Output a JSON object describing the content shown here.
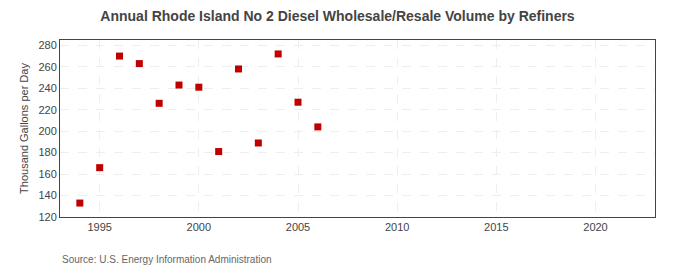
{
  "chart_data": {
    "type": "scatter",
    "title": "Annual Rhode Island No 2 Diesel Wholesale/Resale Volume by Refiners",
    "ylabel": "Thousand Gallons per Day",
    "annotations": [
      "Source: U.S. Energy Information Administration"
    ],
    "x": [
      1994,
      1995,
      1996,
      1997,
      1998,
      1999,
      2000,
      2001,
      2002,
      2003,
      2004,
      2005,
      2006
    ],
    "values": [
      133,
      166,
      270,
      263,
      226,
      243,
      241,
      181,
      258,
      189,
      272,
      227,
      204
    ],
    "color": "#c00000",
    "marker": "square",
    "xlim": [
      1993,
      2023
    ],
    "ylim": [
      120,
      285
    ],
    "xticks": [
      1995,
      2000,
      2005,
      2010,
      2015,
      2020
    ],
    "yticks": [
      120,
      140,
      160,
      180,
      200,
      220,
      240,
      260,
      280
    ],
    "grid": true
  }
}
